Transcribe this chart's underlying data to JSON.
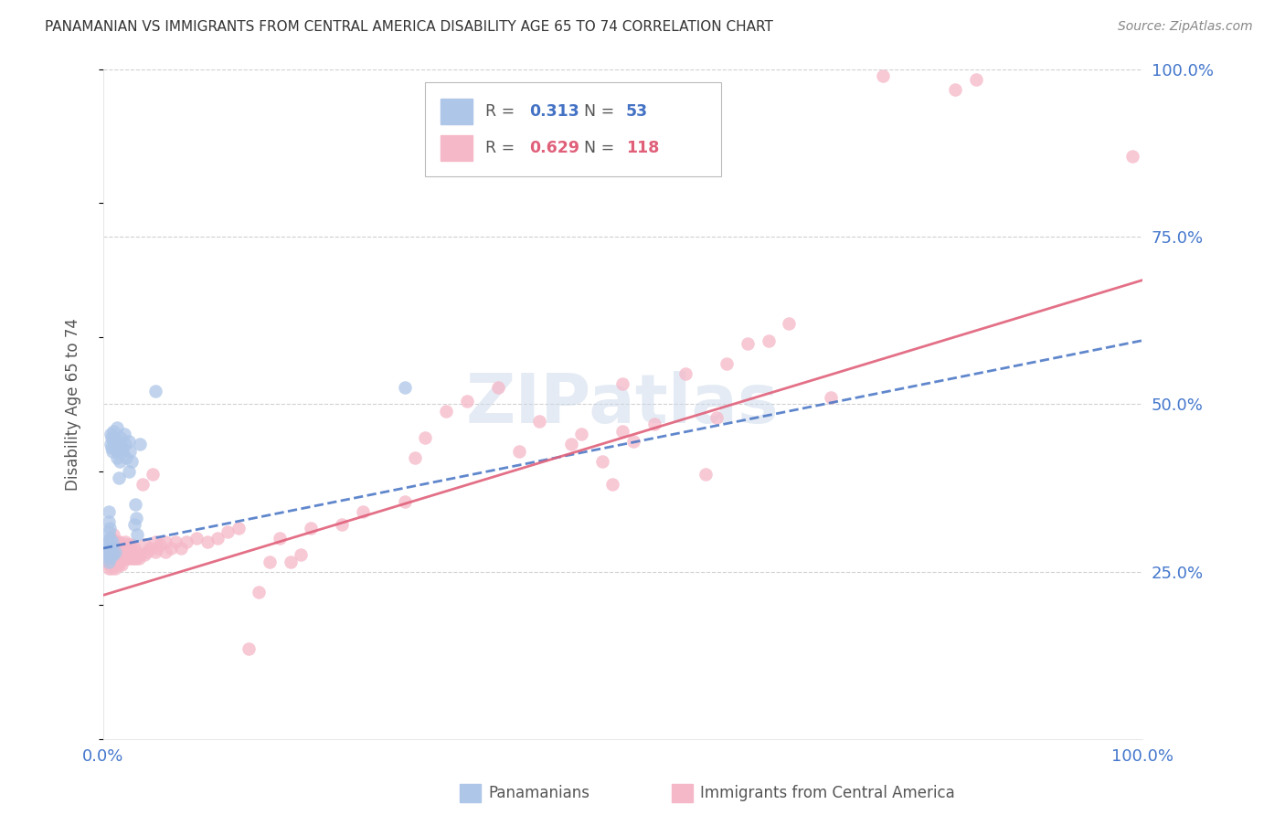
{
  "title": "PANAMANIAN VS IMMIGRANTS FROM CENTRAL AMERICA DISABILITY AGE 65 TO 74 CORRELATION CHART",
  "source": "Source: ZipAtlas.com",
  "ylabel": "Disability Age 65 to 74",
  "xlim": [
    0,
    1
  ],
  "ylim": [
    0,
    1
  ],
  "watermark": "ZIPatlas",
  "blue_scatter_color": "#aec6e8",
  "pink_scatter_color": "#f5b8c8",
  "blue_line_color": "#4472c4",
  "pink_line_color": "#e0607a",
  "blue_dashed_color": "#8ab0d8",
  "grid_color": "#d0d0d0",
  "title_color": "#333333",
  "axis_label_color": "#555555",
  "tick_color": "#4477cc",
  "background_color": "#ffffff",
  "blue_trendline": [
    0.0,
    0.285,
    1.0,
    0.595
  ],
  "pink_trendline": [
    0.0,
    0.215,
    1.0,
    0.685
  ],
  "blue_points": [
    [
      0.004,
      0.275
    ],
    [
      0.004,
      0.295
    ],
    [
      0.005,
      0.265
    ],
    [
      0.005,
      0.28
    ],
    [
      0.005,
      0.295
    ],
    [
      0.005,
      0.31
    ],
    [
      0.005,
      0.325
    ],
    [
      0.005,
      0.34
    ],
    [
      0.006,
      0.27
    ],
    [
      0.006,
      0.285
    ],
    [
      0.006,
      0.3
    ],
    [
      0.006,
      0.315
    ],
    [
      0.007,
      0.275
    ],
    [
      0.007,
      0.29
    ],
    [
      0.007,
      0.44
    ],
    [
      0.007,
      0.455
    ],
    [
      0.008,
      0.28
    ],
    [
      0.008,
      0.435
    ],
    [
      0.008,
      0.45
    ],
    [
      0.009,
      0.295
    ],
    [
      0.009,
      0.43
    ],
    [
      0.01,
      0.275
    ],
    [
      0.01,
      0.445
    ],
    [
      0.01,
      0.46
    ],
    [
      0.011,
      0.435
    ],
    [
      0.011,
      0.45
    ],
    [
      0.012,
      0.28
    ],
    [
      0.012,
      0.44
    ],
    [
      0.013,
      0.42
    ],
    [
      0.013,
      0.465
    ],
    [
      0.014,
      0.43
    ],
    [
      0.014,
      0.445
    ],
    [
      0.015,
      0.39
    ],
    [
      0.015,
      0.44
    ],
    [
      0.016,
      0.415
    ],
    [
      0.017,
      0.45
    ],
    [
      0.018,
      0.435
    ],
    [
      0.019,
      0.43
    ],
    [
      0.02,
      0.455
    ],
    [
      0.021,
      0.44
    ],
    [
      0.022,
      0.42
    ],
    [
      0.025,
      0.4
    ],
    [
      0.025,
      0.445
    ],
    [
      0.026,
      0.43
    ],
    [
      0.027,
      0.415
    ],
    [
      0.03,
      0.32
    ],
    [
      0.031,
      0.35
    ],
    [
      0.032,
      0.33
    ],
    [
      0.033,
      0.305
    ],
    [
      0.035,
      0.44
    ],
    [
      0.05,
      0.52
    ],
    [
      0.29,
      0.525
    ]
  ],
  "pink_points": [
    [
      0.003,
      0.265
    ],
    [
      0.004,
      0.27
    ],
    [
      0.005,
      0.255
    ],
    [
      0.005,
      0.275
    ],
    [
      0.006,
      0.26
    ],
    [
      0.006,
      0.285
    ],
    [
      0.007,
      0.265
    ],
    [
      0.007,
      0.28
    ],
    [
      0.007,
      0.3
    ],
    [
      0.008,
      0.255
    ],
    [
      0.008,
      0.27
    ],
    [
      0.008,
      0.285
    ],
    [
      0.008,
      0.3
    ],
    [
      0.009,
      0.265
    ],
    [
      0.009,
      0.28
    ],
    [
      0.009,
      0.295
    ],
    [
      0.01,
      0.26
    ],
    [
      0.01,
      0.275
    ],
    [
      0.01,
      0.29
    ],
    [
      0.01,
      0.305
    ],
    [
      0.011,
      0.265
    ],
    [
      0.011,
      0.28
    ],
    [
      0.012,
      0.255
    ],
    [
      0.012,
      0.27
    ],
    [
      0.012,
      0.285
    ],
    [
      0.013,
      0.265
    ],
    [
      0.013,
      0.28
    ],
    [
      0.013,
      0.295
    ],
    [
      0.014,
      0.27
    ],
    [
      0.014,
      0.285
    ],
    [
      0.015,
      0.26
    ],
    [
      0.015,
      0.275
    ],
    [
      0.015,
      0.29
    ],
    [
      0.016,
      0.265
    ],
    [
      0.016,
      0.28
    ],
    [
      0.016,
      0.295
    ],
    [
      0.017,
      0.27
    ],
    [
      0.017,
      0.285
    ],
    [
      0.018,
      0.26
    ],
    [
      0.018,
      0.275
    ],
    [
      0.018,
      0.29
    ],
    [
      0.019,
      0.27
    ],
    [
      0.019,
      0.285
    ],
    [
      0.02,
      0.275
    ],
    [
      0.02,
      0.29
    ],
    [
      0.021,
      0.28
    ],
    [
      0.021,
      0.295
    ],
    [
      0.022,
      0.27
    ],
    [
      0.022,
      0.285
    ],
    [
      0.023,
      0.275
    ],
    [
      0.023,
      0.29
    ],
    [
      0.024,
      0.27
    ],
    [
      0.024,
      0.285
    ],
    [
      0.025,
      0.275
    ],
    [
      0.025,
      0.29
    ],
    [
      0.026,
      0.27
    ],
    [
      0.026,
      0.285
    ],
    [
      0.027,
      0.275
    ],
    [
      0.027,
      0.29
    ],
    [
      0.028,
      0.27
    ],
    [
      0.029,
      0.28
    ],
    [
      0.03,
      0.27
    ],
    [
      0.03,
      0.285
    ],
    [
      0.031,
      0.275
    ],
    [
      0.032,
      0.27
    ],
    [
      0.033,
      0.275
    ],
    [
      0.034,
      0.27
    ],
    [
      0.035,
      0.275
    ],
    [
      0.038,
      0.38
    ],
    [
      0.04,
      0.275
    ],
    [
      0.04,
      0.29
    ],
    [
      0.042,
      0.28
    ],
    [
      0.045,
      0.285
    ],
    [
      0.048,
      0.395
    ],
    [
      0.05,
      0.28
    ],
    [
      0.05,
      0.295
    ],
    [
      0.052,
      0.285
    ],
    [
      0.055,
      0.29
    ],
    [
      0.06,
      0.28
    ],
    [
      0.06,
      0.295
    ],
    [
      0.065,
      0.285
    ],
    [
      0.07,
      0.295
    ],
    [
      0.075,
      0.285
    ],
    [
      0.08,
      0.295
    ],
    [
      0.09,
      0.3
    ],
    [
      0.1,
      0.295
    ],
    [
      0.11,
      0.3
    ],
    [
      0.12,
      0.31
    ],
    [
      0.13,
      0.315
    ],
    [
      0.14,
      0.135
    ],
    [
      0.15,
      0.22
    ],
    [
      0.16,
      0.265
    ],
    [
      0.17,
      0.3
    ],
    [
      0.18,
      0.265
    ],
    [
      0.19,
      0.275
    ],
    [
      0.2,
      0.315
    ],
    [
      0.23,
      0.32
    ],
    [
      0.25,
      0.34
    ],
    [
      0.29,
      0.355
    ],
    [
      0.3,
      0.42
    ],
    [
      0.31,
      0.45
    ],
    [
      0.33,
      0.49
    ],
    [
      0.35,
      0.505
    ],
    [
      0.38,
      0.525
    ],
    [
      0.4,
      0.43
    ],
    [
      0.42,
      0.475
    ],
    [
      0.45,
      0.44
    ],
    [
      0.46,
      0.455
    ],
    [
      0.48,
      0.415
    ],
    [
      0.49,
      0.38
    ],
    [
      0.5,
      0.46
    ],
    [
      0.5,
      0.53
    ],
    [
      0.51,
      0.445
    ],
    [
      0.53,
      0.47
    ],
    [
      0.56,
      0.545
    ],
    [
      0.58,
      0.395
    ],
    [
      0.59,
      0.48
    ],
    [
      0.6,
      0.56
    ],
    [
      0.62,
      0.59
    ],
    [
      0.64,
      0.595
    ],
    [
      0.66,
      0.62
    ],
    [
      0.7,
      0.51
    ],
    [
      0.75,
      0.99
    ],
    [
      0.82,
      0.97
    ],
    [
      0.84,
      0.985
    ],
    [
      0.99,
      0.87
    ]
  ],
  "figsize": [
    14.06,
    8.92
  ],
  "dpi": 100
}
